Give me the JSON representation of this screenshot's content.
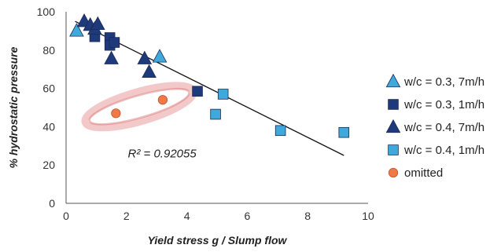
{
  "chart_data": {
    "type": "scatter",
    "title": "",
    "xlabel": "Yield stress g / Slump flow",
    "ylabel": "% hydrostatic pressure",
    "xlim": [
      0,
      10
    ],
    "ylim": [
      0,
      100
    ],
    "x_ticks": [
      "0",
      "2",
      "4",
      "6",
      "8",
      "10"
    ],
    "y_ticks": [
      "0",
      "20",
      "40",
      "60",
      "80",
      "100"
    ],
    "legend_position": "right",
    "grid": false,
    "series": [
      {
        "name": "w/c = 0.3, 7m/h",
        "marker": "triangle",
        "color": "#3fa9dc",
        "points": [
          [
            0.35,
            90
          ],
          [
            3.1,
            76.5
          ]
        ]
      },
      {
        "name": "w/c = 0.3, 1m/h",
        "marker": "square",
        "color": "#1f3a7a",
        "points": [
          [
            0.95,
            87
          ],
          [
            1.45,
            86.5
          ],
          [
            1.45,
            82.5
          ],
          [
            1.6,
            84
          ],
          [
            4.35,
            58.5
          ]
        ]
      },
      {
        "name": "w/c = 0.4, 7m/h",
        "marker": "triangle",
        "color": "#1f3a7a",
        "points": [
          [
            0.6,
            95
          ],
          [
            0.8,
            93
          ],
          [
            0.95,
            91
          ],
          [
            1.05,
            93.5
          ],
          [
            1.5,
            75.5
          ],
          [
            2.6,
            75.5
          ],
          [
            2.75,
            68.5
          ]
        ]
      },
      {
        "name": "w/c = 0.4, 1m/h",
        "marker": "square",
        "color": "#3fa9dc",
        "points": [
          [
            5.2,
            57
          ],
          [
            4.95,
            46.5
          ],
          [
            7.1,
            38
          ],
          [
            9.2,
            37
          ]
        ]
      },
      {
        "name": "omitted",
        "marker": "circle",
        "color": "#f07a45",
        "points": [
          [
            1.65,
            47
          ],
          [
            3.2,
            54
          ]
        ]
      }
    ],
    "trendline": {
      "x": [
        0.3,
        9.2
      ],
      "y": [
        95,
        25
      ]
    },
    "annotations": [
      {
        "text": "R² = 0.92055",
        "x": 3.4,
        "y": 24
      }
    ]
  }
}
